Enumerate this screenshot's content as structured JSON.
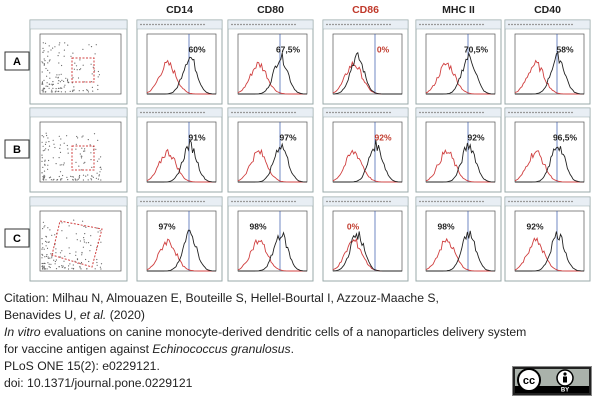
{
  "columns": [
    "CD14",
    "CD80",
    "CD86",
    "MHC II",
    "CD40"
  ],
  "rows": [
    {
      "label": "A",
      "values": [
        "60%",
        "67,5%",
        "0%",
        "70,5%",
        "58%"
      ]
    },
    {
      "label": "B",
      "values": [
        "91%",
        "97%",
        "92%",
        "92%",
        "96,5%"
      ]
    },
    {
      "label": "C",
      "values": [
        "97%",
        "98%",
        "0%",
        "98%",
        "92%"
      ]
    }
  ],
  "citation": {
    "line1": "Citation: Milhau N, Almouazen E, Bouteille S, Hellel-Bourtal I, Azzouz-Maache S,",
    "line2": [
      "Benavides U, ",
      "et al.",
      " (2020)"
    ],
    "line3": [
      "In vitro",
      " evaluations on canine monocyte-derived dendritic cells of a nanoparticles delivery system"
    ],
    "line4": [
      "for vaccine antigen against ",
      "Echinococcus granulosus",
      "."
    ],
    "line5": "PLoS ONE 15(2): e0229121.",
    "line6": "doi: 10.1371/journal.pone.0229121"
  },
  "license": {
    "cc": "cc",
    "by": "BY"
  }
}
